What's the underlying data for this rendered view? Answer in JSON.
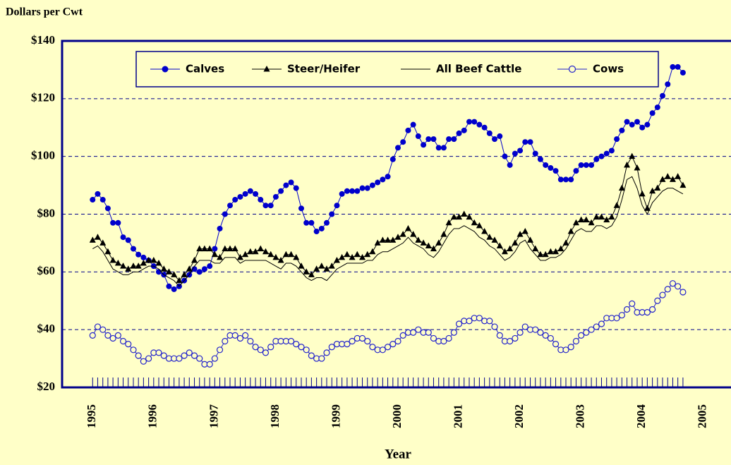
{
  "chart_data": {
    "type": "line",
    "y_label": "Dollars per Cwt",
    "x_label": "Year",
    "legend": "top",
    "grid": true,
    "xlim": [
      1994.5,
      2005.5
    ],
    "xticks": [
      1995,
      1996,
      1997,
      1998,
      1999,
      2000,
      2001,
      2002,
      2003,
      2004,
      2005
    ],
    "ylim": [
      20,
      140
    ],
    "yticks": [
      {
        "value": 20,
        "label": "$20"
      },
      {
        "value": 40,
        "label": "$40"
      },
      {
        "value": 60,
        "label": "$60"
      },
      {
        "value": 80,
        "label": "$80"
      },
      {
        "value": 100,
        "label": "$100"
      },
      {
        "value": 120,
        "label": "$120"
      },
      {
        "value": 140,
        "label": "$140"
      }
    ],
    "x": [
      1995,
      1995.083,
      1995.167,
      1995.25,
      1995.333,
      1995.417,
      1995.5,
      1995.583,
      1995.667,
      1995.75,
      1995.833,
      1995.917,
      1996,
      1996.083,
      1996.167,
      1996.25,
      1996.333,
      1996.417,
      1996.5,
      1996.583,
      1996.667,
      1996.75,
      1996.833,
      1996.917,
      1997,
      1997.083,
      1997.167,
      1997.25,
      1997.333,
      1997.417,
      1997.5,
      1997.583,
      1997.667,
      1997.75,
      1997.833,
      1997.917,
      1998,
      1998.083,
      1998.167,
      1998.25,
      1998.333,
      1998.417,
      1998.5,
      1998.583,
      1998.667,
      1998.75,
      1998.833,
      1998.917,
      1999,
      1999.083,
      1999.167,
      1999.25,
      1999.333,
      1999.417,
      1999.5,
      1999.583,
      1999.667,
      1999.75,
      1999.833,
      1999.917,
      2000,
      2000.083,
      2000.167,
      2000.25,
      2000.333,
      2000.417,
      2000.5,
      2000.583,
      2000.667,
      2000.75,
      2000.833,
      2000.917,
      2001,
      2001.083,
      2001.167,
      2001.25,
      2001.333,
      2001.417,
      2001.5,
      2001.583,
      2001.667,
      2001.75,
      2001.833,
      2001.917,
      2002,
      2002.083,
      2002.167,
      2002.25,
      2002.333,
      2002.417,
      2002.5,
      2002.583,
      2002.667,
      2002.75,
      2002.833,
      2002.917,
      2003,
      2003.083,
      2003.167,
      2003.25,
      2003.333,
      2003.417,
      2003.5,
      2003.583,
      2003.667,
      2003.75,
      2003.833,
      2003.917,
      2004,
      2004.083,
      2004.167,
      2004.25,
      2004.333,
      2004.417,
      2004.5,
      2004.583,
      2004.667
    ],
    "series": [
      {
        "name": "Calves",
        "color": "#0000cc",
        "marker": "filled-circle",
        "values": [
          85,
          87,
          85,
          82,
          77,
          77,
          72,
          71,
          68,
          66,
          65,
          64,
          62,
          60,
          59,
          55,
          54,
          55,
          57,
          59,
          61,
          60,
          61,
          62,
          68,
          75,
          80,
          83,
          85,
          86,
          87,
          88,
          87,
          85,
          83,
          83,
          86,
          88,
          90,
          91,
          89,
          82,
          77,
          77,
          74,
          75,
          77,
          80,
          83,
          87,
          88,
          88,
          88,
          89,
          89,
          90,
          91,
          92,
          93,
          99,
          103,
          105,
          109,
          111,
          107,
          104,
          106,
          106,
          103,
          103,
          106,
          106,
          108,
          109,
          112,
          112,
          111,
          110,
          108,
          106,
          107,
          100,
          97,
          101,
          102,
          105,
          105,
          101,
          99,
          97,
          96,
          95,
          92,
          92,
          92,
          95,
          97,
          97,
          97,
          99,
          100,
          101,
          102,
          106,
          109,
          112,
          111,
          112,
          110,
          111,
          115,
          117,
          121,
          125,
          131,
          131,
          129
        ]
      },
      {
        "name": "Steer/Heifer",
        "color": "#000000",
        "marker": "triangle",
        "values": [
          71,
          72,
          70,
          67,
          64,
          63,
          62,
          61,
          62,
          62,
          63,
          64,
          64,
          63,
          61,
          60,
          59,
          57,
          59,
          61,
          64,
          68,
          68,
          68,
          66,
          65,
          68,
          68,
          68,
          65,
          66,
          67,
          67,
          68,
          67,
          66,
          65,
          64,
          66,
          66,
          65,
          62,
          60,
          59,
          61,
          62,
          61,
          62,
          64,
          65,
          66,
          65,
          66,
          65,
          66,
          67,
          70,
          71,
          71,
          71,
          72,
          73,
          75,
          73,
          71,
          70,
          69,
          68,
          70,
          73,
          77,
          79,
          79,
          80,
          79,
          77,
          76,
          74,
          72,
          71,
          69,
          67,
          68,
          70,
          73,
          74,
          71,
          68,
          66,
          66,
          67,
          67,
          68,
          70,
          74,
          77,
          78,
          78,
          77,
          79,
          79,
          78,
          79,
          83,
          89,
          97,
          100,
          96,
          87,
          82,
          88,
          89,
          92,
          93,
          92,
          93,
          90
        ]
      },
      {
        "name": "All Beef Cattle",
        "color": "#000000",
        "marker": "none",
        "values": [
          68,
          69,
          67,
          64,
          61,
          60,
          59,
          59,
          60,
          60,
          61,
          62,
          62,
          61,
          59,
          58,
          57,
          55,
          57,
          59,
          62,
          64,
          64,
          64,
          63,
          63,
          65,
          65,
          65,
          63,
          64,
          64,
          64,
          64,
          64,
          63,
          62,
          61,
          63,
          63,
          62,
          60,
          58,
          57,
          58,
          58,
          57,
          59,
          61,
          62,
          63,
          63,
          63,
          63,
          64,
          64,
          66,
          67,
          67,
          68,
          69,
          70,
          72,
          70,
          69,
          68,
          66,
          65,
          67,
          70,
          73,
          75,
          75,
          76,
          75,
          74,
          72,
          71,
          69,
          68,
          66,
          64,
          65,
          67,
          70,
          71,
          68,
          66,
          64,
          64,
          65,
          65,
          66,
          68,
          71,
          74,
          75,
          74,
          74,
          76,
          76,
          75,
          76,
          79,
          85,
          92,
          93,
          89,
          83,
          80,
          84,
          86,
          88,
          89,
          89,
          88,
          87
        ]
      },
      {
        "name": "Cows",
        "color": "#2222cc",
        "marker": "open-circle",
        "values": [
          38,
          41,
          40,
          38,
          37,
          38,
          36,
          35,
          33,
          31,
          29,
          30,
          32,
          32,
          31,
          30,
          30,
          30,
          31,
          32,
          31,
          30,
          28,
          28,
          30,
          33,
          36,
          38,
          38,
          37,
          38,
          36,
          34,
          33,
          32,
          34,
          36,
          36,
          36,
          36,
          35,
          34,
          33,
          31,
          30,
          30,
          32,
          34,
          35,
          35,
          35,
          36,
          37,
          37,
          36,
          34,
          33,
          33,
          34,
          35,
          36,
          38,
          39,
          39,
          40,
          39,
          39,
          37,
          36,
          36,
          37,
          39,
          42,
          43,
          43,
          44,
          44,
          43,
          43,
          41,
          38,
          36,
          36,
          37,
          39,
          41,
          40,
          40,
          39,
          38,
          37,
          35,
          33,
          33,
          34,
          36,
          38,
          39,
          40,
          41,
          42,
          44,
          44,
          44,
          45,
          47,
          49,
          46,
          46,
          46,
          47,
          50,
          52,
          54,
          56,
          55,
          53
        ]
      }
    ]
  }
}
